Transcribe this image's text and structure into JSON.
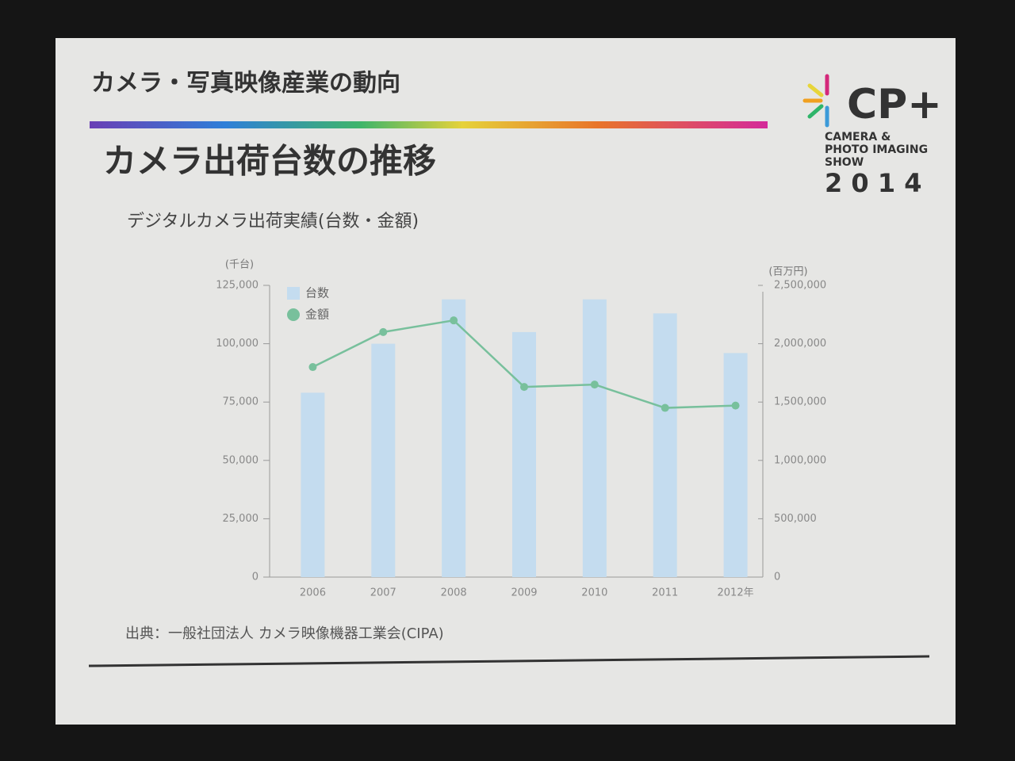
{
  "slide": {
    "header": "カメラ・写真映像産業の動向",
    "title": "カメラ出荷台数の推移",
    "source": "出典：一般社団法人 カメラ映像機器工業会(CIPA)",
    "logo": {
      "mark": "CP+",
      "lines": [
        "CAMERA &",
        "PHOTO IMAGING",
        "SHOW"
      ],
      "year": "2 0 1 4"
    }
  },
  "chart_data": {
    "type": "bar",
    "title": "デジタルカメラ出荷実績(台数・金額)",
    "y_label": "(千台)",
    "y2_label": "(百万円)",
    "categories": [
      "2006",
      "2007",
      "2008",
      "2009",
      "2010",
      "2011",
      "2012年"
    ],
    "series": [
      {
        "name": "台数",
        "type": "bar",
        "color": "#c4dcef",
        "values": [
          79000,
          100000,
          119000,
          105000,
          119000,
          113000,
          96000
        ]
      },
      {
        "name": "金額",
        "type": "line",
        "axis": "y2",
        "color": "#78c09c",
        "values": [
          1800000,
          2100000,
          2200000,
          1630000,
          1650000,
          1450000,
          1470000
        ]
      }
    ],
    "ylim": [
      0,
      125000
    ],
    "yticks": [
      0,
      {
        "value": 25000,
        "label": "25,000"
      },
      {
        "value": 50000,
        "label": "50,000"
      },
      {
        "value": 75000,
        "label": "75,000"
      },
      {
        "value": 100000,
        "label": "100,000"
      },
      {
        "value": 125000,
        "label": "125,000"
      }
    ],
    "y2lim": [
      0,
      2500000
    ],
    "y2ticks": [
      0,
      {
        "value": 500000,
        "label": "500,000"
      },
      {
        "value": 1000000,
        "label": "1,000,000"
      },
      {
        "value": 1500000,
        "label": "1,500,000"
      },
      {
        "value": 2000000,
        "label": "2,000,000"
      },
      {
        "value": 2500000,
        "label": "2,500,000"
      }
    ],
    "legend": "top-left"
  }
}
